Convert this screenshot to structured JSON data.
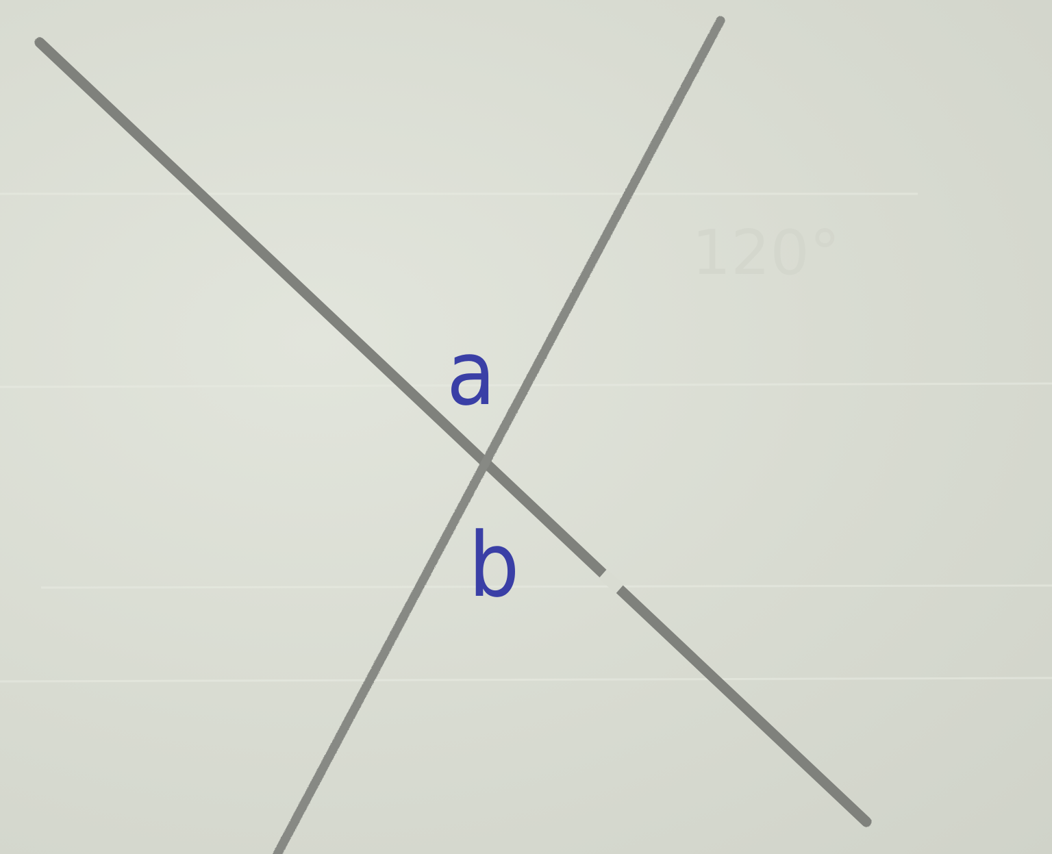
{
  "diagram": {
    "angle_labels": {
      "a": "a",
      "b": "b"
    },
    "faint_imprint_text": "120°",
    "colors": {
      "paper": "#d9dcd2",
      "pencil_line": "#7f817c",
      "ink_label": "#3a3fa6"
    }
  }
}
